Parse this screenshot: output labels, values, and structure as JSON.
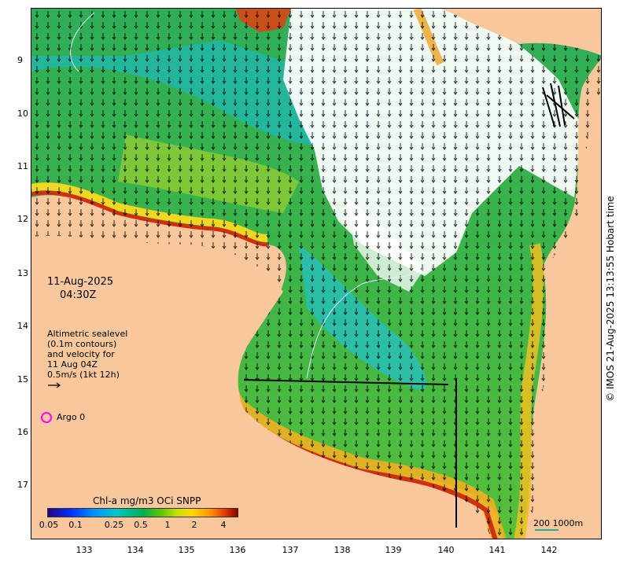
{
  "map": {
    "y_ticks": [
      "9",
      "10",
      "11",
      "12",
      "13",
      "14",
      "15",
      "16",
      "17"
    ],
    "x_ticks": [
      "133",
      "134",
      "135",
      "136",
      "137",
      "138",
      "139",
      "140",
      "141",
      "142"
    ],
    "date_line1": "11-Aug-2025",
    "date_line2": "04:30Z",
    "altimetry_line1": "Altimetric sealevel",
    "altimetry_line2": "(0.1m contours)",
    "altimetry_line3": "and velocity for",
    "altimetry_line4": "11 Aug 04Z",
    "altimetry_line5": "0.5m/s (1kt 12h)",
    "argo_label": "Argo 0",
    "colorbar_title": "Chl-a mg/m3 OCi SNPP",
    "colorbar_ticks": [
      "0.05",
      "0.1",
      "0.25",
      "0.5",
      "1",
      "2",
      "4"
    ],
    "scale_label": "200  1000m",
    "credit": "© IMOS 21-Aug-2025 13:13:55 Hobart time",
    "colors": {
      "land": "#f8c89c",
      "ocean_green": "#35b04a",
      "ocean_cyan": "#20b8a0",
      "coast_yellow": "#f0e020",
      "coast_red": "#d03010",
      "cloud": "#ffffff",
      "argo": "#ff00ff"
    }
  }
}
